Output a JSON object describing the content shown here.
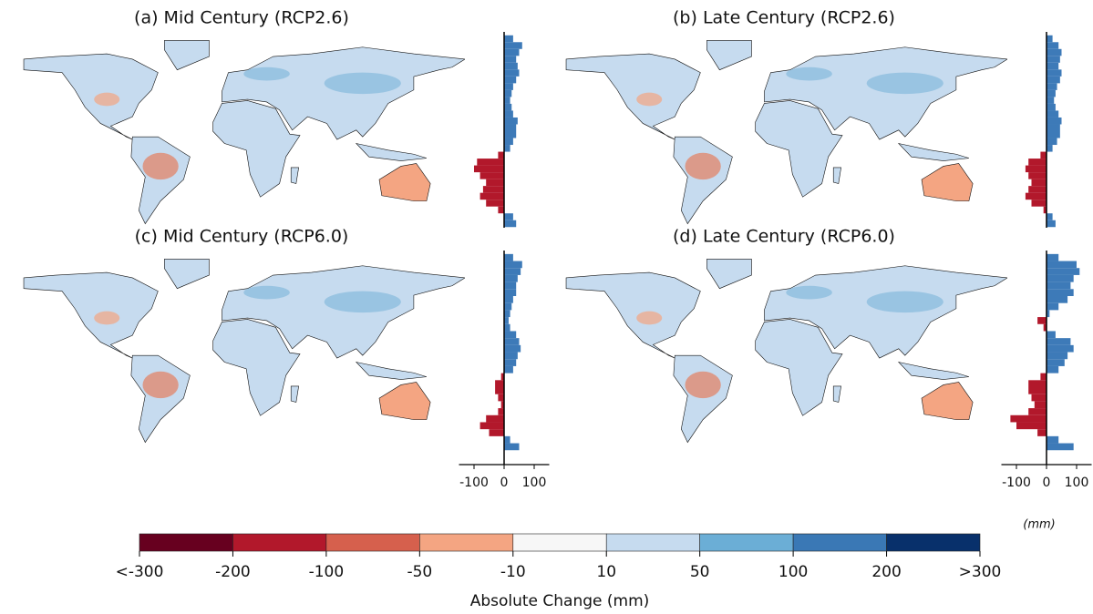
{
  "panels": [
    {
      "title": "(a) Mid Century (RCP2.6)",
      "profile": [
        30,
        60,
        50,
        40,
        45,
        50,
        40,
        30,
        25,
        20,
        25,
        30,
        45,
        40,
        40,
        30,
        20,
        -20,
        -90,
        -100,
        -80,
        -60,
        -70,
        -80,
        -60,
        -20,
        30,
        40
      ]
    },
    {
      "title": "(b) Late Century (RCP2.6)",
      "profile": [
        20,
        40,
        50,
        45,
        40,
        50,
        45,
        35,
        30,
        25,
        30,
        40,
        50,
        45,
        45,
        35,
        20,
        -20,
        -60,
        -70,
        -60,
        -50,
        -60,
        -70,
        -50,
        -10,
        20,
        30
      ]
    },
    {
      "title": "(c) Mid Century (RCP6.0)",
      "profile": [
        30,
        60,
        55,
        45,
        40,
        40,
        30,
        25,
        20,
        15,
        20,
        40,
        50,
        55,
        45,
        40,
        30,
        -10,
        -30,
        -30,
        -20,
        -10,
        -20,
        -60,
        -80,
        -50,
        20,
        50
      ]
    },
    {
      "title": "(d) Late Century (RCP6.0)",
      "profile": [
        40,
        100,
        110,
        90,
        80,
        90,
        70,
        40,
        10,
        -30,
        -10,
        30,
        80,
        90,
        70,
        60,
        40,
        -20,
        -60,
        -60,
        -50,
        -40,
        -60,
        -120,
        -100,
        -30,
        40,
        90
      ]
    }
  ],
  "lat": [
    80,
    75,
    70,
    65,
    60,
    55,
    50,
    45,
    40,
    35,
    30,
    25,
    20,
    15,
    10,
    5,
    0,
    -5,
    -10,
    -15,
    -20,
    -25,
    -30,
    -35,
    -40,
    -45,
    -50,
    -55
  ],
  "profile_axis": {
    "xlim": [
      -150,
      150
    ],
    "xticks": [
      -100,
      0,
      100
    ],
    "unit": "(mm)",
    "positive_color": "#3d7ab8",
    "negative_color": "#b2182b"
  },
  "colorbar": {
    "title": "Absolute Change (mm)",
    "ticks": [
      {
        "value": -300,
        "label": "<-300"
      },
      -200,
      -100,
      -50,
      -10,
      10,
      50,
      100,
      200,
      {
        "value": 300,
        "label": ">300"
      }
    ],
    "colors": [
      "#67001f",
      "#b2182b",
      "#d6604d",
      "#f4a582",
      "#f7f7f7",
      "#c6dbef",
      "#6baed6",
      "#3a78b5",
      "#08306b"
    ]
  }
}
